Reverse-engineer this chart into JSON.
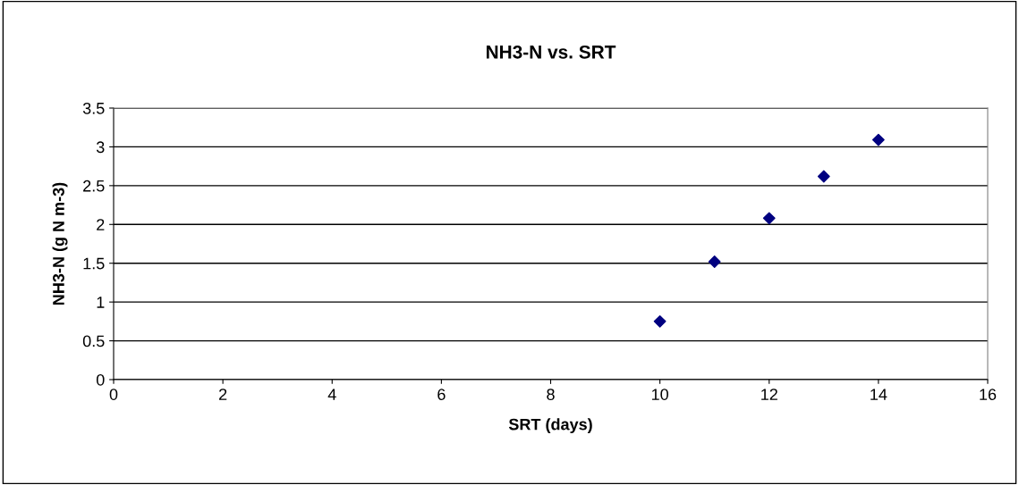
{
  "chart_data": {
    "type": "scatter",
    "title": "NH3-N vs. SRT",
    "xlabel": "SRT (days)",
    "ylabel": "NH3-N (g N m-3)",
    "x": [
      10,
      11,
      12,
      13,
      14
    ],
    "series": [
      {
        "color": "#000080",
        "values": [
          0.75,
          1.52,
          2.08,
          2.62,
          3.09
        ]
      }
    ],
    "marker": "diamond",
    "xlim": [
      0,
      16
    ],
    "xticks": [
      0,
      2,
      4,
      6,
      8,
      10,
      12,
      14,
      16
    ],
    "ylim": [
      0,
      3.5
    ],
    "yticks": [
      0,
      0.5,
      1,
      1.5,
      2,
      2.5,
      3,
      3.5
    ],
    "grid": "y",
    "legend": false
  }
}
